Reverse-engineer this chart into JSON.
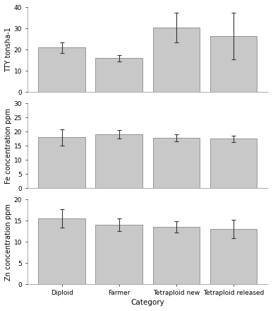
{
  "categories": [
    "Diploid",
    "Farmer",
    "Tetraploid new",
    "Tetraploid released"
  ],
  "subplots": [
    {
      "ylabel": "TTY tonsha-1",
      "ylim": [
        0,
        40
      ],
      "yticks": [
        0,
        10,
        20,
        30,
        40
      ],
      "values": [
        21.0,
        16.0,
        30.5,
        26.5
      ],
      "errors": [
        2.5,
        1.5,
        7.0,
        11.0
      ]
    },
    {
      "ylabel": "Fe concentration ppm",
      "ylim": [
        0,
        30
      ],
      "yticks": [
        0,
        5,
        10,
        15,
        20,
        25,
        30
      ],
      "values": [
        18.0,
        19.0,
        17.8,
        17.5
      ],
      "errors": [
        2.8,
        1.5,
        1.2,
        1.2
      ]
    },
    {
      "ylabel": "Zn concentration ppm",
      "ylim": [
        0,
        20
      ],
      "yticks": [
        0,
        5,
        10,
        15,
        20
      ],
      "values": [
        15.5,
        14.0,
        13.5,
        13.0
      ],
      "errors": [
        2.2,
        1.5,
        1.3,
        2.2
      ]
    }
  ],
  "xlabel": "Category",
  "bar_color": "#c8c8c8",
  "bar_edgecolor": "#888888",
  "errorbar_color": "#333333",
  "background_color": "#ffffff",
  "panel_color": "#ffffff",
  "bar_width": 0.82,
  "tick_labelsize": 6.5,
  "axis_labelsize": 7.0,
  "xlabel_fontsize": 7.5,
  "cat_labelsize": 6.5
}
